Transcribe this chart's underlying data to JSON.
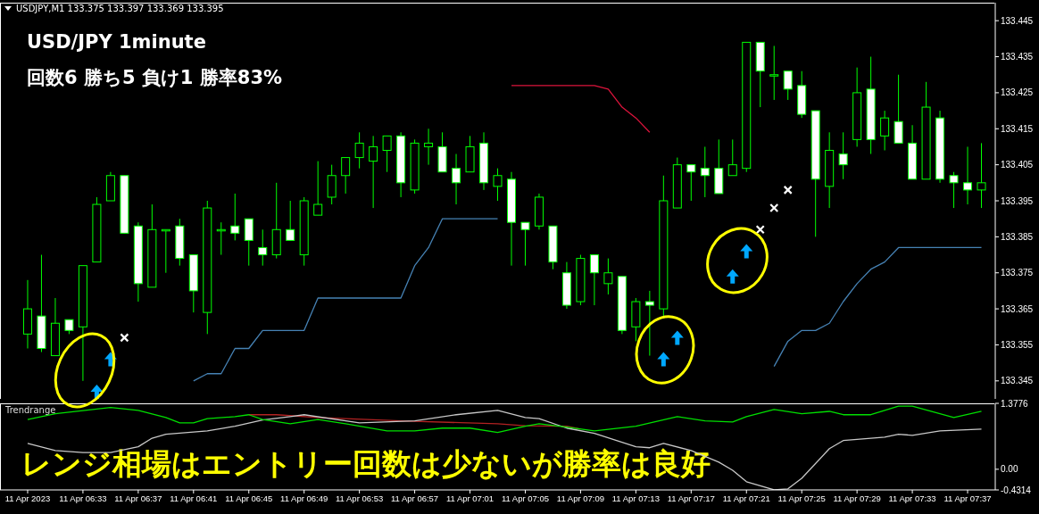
{
  "chart_data": [
    {
      "type": "candlestick",
      "color": "#00ff00",
      "annotations": [
        "USDJPY,M1  133.375 133.397 133.369 133.395",
        "USD/JPY 1minute",
        "回数6 勝ち5 負け1 勝率83%"
      ],
      "x": [
        "2023-04-11T06:29",
        "2023-04-11T06:30",
        "2023-04-11T06:31",
        "2023-04-11T06:32",
        "2023-04-11T06:33",
        "2023-04-11T06:34",
        "2023-04-11T06:35",
        "2023-04-11T06:36",
        "2023-04-11T06:37",
        "2023-04-11T06:38",
        "2023-04-11T06:39",
        "2023-04-11T06:40",
        "2023-04-11T06:41",
        "2023-04-11T06:42",
        "2023-04-11T06:43",
        "2023-04-11T06:44",
        "2023-04-11T06:45",
        "2023-04-11T06:46",
        "2023-04-11T06:47",
        "2023-04-11T06:48",
        "2023-04-11T06:49",
        "2023-04-11T06:50",
        "2023-04-11T06:51",
        "2023-04-11T06:52",
        "2023-04-11T06:53",
        "2023-04-11T06:54",
        "2023-04-11T06:55",
        "2023-04-11T06:56",
        "2023-04-11T06:57",
        "2023-04-11T06:58",
        "2023-04-11T06:59",
        "2023-04-11T07:00",
        "2023-04-11T07:01",
        "2023-04-11T07:02",
        "2023-04-11T07:03",
        "2023-04-11T07:04",
        "2023-04-11T07:05",
        "2023-04-11T07:06",
        "2023-04-11T07:07",
        "2023-04-11T07:08",
        "2023-04-11T07:09",
        "2023-04-11T07:10",
        "2023-04-11T07:11",
        "2023-04-11T07:12",
        "2023-04-11T07:13",
        "2023-04-11T07:14",
        "2023-04-11T07:15",
        "2023-04-11T07:16",
        "2023-04-11T07:17",
        "2023-04-11T07:18",
        "2023-04-11T07:19",
        "2023-04-11T07:20",
        "2023-04-11T07:21",
        "2023-04-11T07:22",
        "2023-04-11T07:23",
        "2023-04-11T07:24",
        "2023-04-11T07:25",
        "2023-04-11T07:26",
        "2023-04-11T07:27",
        "2023-04-11T07:28",
        "2023-04-11T07:29",
        "2023-04-11T07:30",
        "2023-04-11T07:31",
        "2023-04-11T07:32",
        "2023-04-11T07:33",
        "2023-04-11T07:34",
        "2023-04-11T07:35",
        "2023-04-11T07:36",
        "2023-04-11T07:37",
        "2023-04-11T07:38"
      ],
      "ohlc": [
        [
          133.358,
          133.373,
          133.354,
          133.365
        ],
        [
          133.363,
          133.38,
          133.353,
          133.354
        ],
        [
          133.352,
          133.368,
          133.352,
          133.361
        ],
        [
          133.362,
          133.362,
          133.358,
          133.359
        ],
        [
          133.36,
          133.377,
          133.345,
          133.377
        ],
        [
          133.378,
          133.396,
          133.378,
          133.394
        ],
        [
          133.395,
          133.403,
          133.395,
          133.402
        ],
        [
          133.402,
          133.402,
          133.386,
          133.386
        ],
        [
          133.388,
          133.389,
          133.367,
          133.372
        ],
        [
          133.371,
          133.394,
          133.371,
          133.387
        ],
        [
          133.387,
          133.387,
          133.375,
          133.387
        ],
        [
          133.388,
          133.39,
          133.377,
          133.379
        ],
        [
          133.38,
          133.38,
          133.364,
          133.37
        ],
        [
          133.364,
          133.395,
          133.358,
          133.393
        ],
        [
          133.387,
          133.389,
          133.38,
          133.387
        ],
        [
          133.388,
          133.397,
          133.384,
          133.386
        ],
        [
          133.39,
          133.39,
          133.377,
          133.384
        ],
        [
          133.382,
          133.387,
          133.377,
          133.38
        ],
        [
          133.38,
          133.4,
          133.379,
          133.387
        ],
        [
          133.387,
          133.395,
          133.384,
          133.384
        ],
        [
          133.38,
          133.396,
          133.377,
          133.395
        ],
        [
          133.391,
          133.406,
          133.391,
          133.394
        ],
        [
          133.396,
          133.405,
          133.394,
          133.402
        ],
        [
          133.402,
          133.407,
          133.397,
          133.407
        ],
        [
          133.407,
          133.414,
          133.404,
          133.411
        ],
        [
          133.406,
          133.413,
          133.393,
          133.41
        ],
        [
          133.409,
          133.413,
          133.403,
          133.413
        ],
        [
          133.413,
          133.414,
          133.396,
          133.4
        ],
        [
          133.398,
          133.412,
          133.397,
          133.411
        ],
        [
          133.41,
          133.415,
          133.405,
          133.411
        ],
        [
          133.41,
          133.414,
          133.403,
          133.403
        ],
        [
          133.404,
          133.408,
          133.394,
          133.4
        ],
        [
          133.403,
          133.413,
          133.403,
          133.41
        ],
        [
          133.411,
          133.414,
          133.398,
          133.4
        ],
        [
          133.399,
          133.404,
          133.395,
          133.402
        ],
        [
          133.401,
          133.403,
          133.377,
          133.389
        ],
        [
          133.389,
          133.389,
          133.377,
          133.387
        ],
        [
          133.388,
          133.397,
          133.387,
          133.396
        ],
        [
          133.388,
          133.388,
          133.376,
          133.378
        ],
        [
          133.375,
          133.378,
          133.365,
          133.366
        ],
        [
          133.367,
          133.38,
          133.366,
          133.379
        ],
        [
          133.38,
          133.38,
          133.366,
          133.375
        ],
        [
          133.372,
          133.379,
          133.369,
          133.375
        ],
        [
          133.374,
          133.374,
          133.358,
          133.359
        ],
        [
          133.36,
          133.368,
          133.356,
          133.367
        ],
        [
          133.367,
          133.37,
          133.352,
          133.366
        ],
        [
          133.365,
          133.402,
          133.363,
          133.395
        ],
        [
          133.393,
          133.407,
          133.393,
          133.405
        ],
        [
          133.405,
          133.405,
          133.395,
          133.403
        ],
        [
          133.404,
          133.41,
          133.396,
          133.402
        ],
        [
          133.404,
          133.412,
          133.397,
          133.397
        ],
        [
          133.402,
          133.412,
          133.402,
          133.405
        ],
        [
          133.404,
          133.439,
          133.403,
          133.439
        ],
        [
          133.439,
          133.439,
          133.421,
          133.431
        ],
        [
          133.43,
          133.438,
          133.423,
          133.43
        ],
        [
          133.431,
          133.431,
          133.423,
          133.426
        ],
        [
          133.427,
          133.431,
          133.418,
          133.419
        ],
        [
          133.42,
          133.42,
          133.385,
          133.401
        ],
        [
          133.399,
          133.414,
          133.393,
          133.409
        ],
        [
          133.408,
          133.414,
          133.401,
          133.405
        ],
        [
          133.412,
          133.432,
          133.41,
          133.425
        ],
        [
          133.426,
          133.435,
          133.408,
          133.412
        ],
        [
          133.413,
          133.42,
          133.409,
          133.418
        ],
        [
          133.417,
          133.43,
          133.411,
          133.411
        ],
        [
          133.411,
          133.416,
          133.401,
          133.401
        ],
        [
          133.401,
          133.428,
          133.401,
          133.421
        ],
        [
          133.418,
          133.42,
          133.4,
          133.401
        ],
        [
          133.402,
          133.403,
          133.393,
          133.4
        ],
        [
          133.4,
          133.41,
          133.394,
          133.398
        ],
        [
          133.398,
          133.411,
          133.393,
          133.4
        ]
      ],
      "series": [
        {
          "type": "line",
          "color": "#4682b4",
          "x": [
            "2023-04-11T06:41",
            "2023-04-11T06:42",
            "2023-04-11T06:43",
            "2023-04-11T06:44",
            "2023-04-11T06:45",
            "2023-04-11T06:46",
            "2023-04-11T06:49",
            "2023-04-11T06:50",
            "2023-04-11T06:56",
            "2023-04-11T06:57",
            "2023-04-11T06:58",
            "2023-04-11T06:59",
            "2023-04-11T07:03",
            "2023-04-11T07:13",
            "2023-04-11T07:23",
            "2023-04-11T07:24",
            "2023-04-11T07:25",
            "2023-04-11T07:26",
            "2023-04-11T07:27",
            "2023-04-11T07:28",
            "2023-04-11T07:29",
            "2023-04-11T07:30",
            "2023-04-11T07:31",
            "2023-04-11T07:32",
            "2023-04-11T07:38"
          ],
          "values": [
            133.345,
            133.347,
            133.347,
            133.354,
            133.354,
            133.359,
            133.359,
            133.368,
            133.368,
            133.377,
            133.382,
            133.39,
            133.39,
            null,
            133.349,
            133.356,
            133.359,
            133.359,
            133.361,
            133.367,
            133.372,
            133.376,
            133.378,
            133.382,
            133.382
          ]
        },
        {
          "type": "line",
          "color": "#dc143c",
          "x": [
            "2023-04-11T07:04",
            "2023-04-11T07:10",
            "2023-04-11T07:11",
            "2023-04-11T07:12",
            "2023-04-11T07:13",
            "2023-04-11T07:14"
          ],
          "values": [
            133.427,
            133.427,
            133.426,
            133.421,
            133.418,
            133.414
          ]
        },
        {
          "type": "scatter",
          "color": "#00a8ff",
          "marker": "triangle",
          "x": [
            "2023-04-11T06:34",
            "2023-04-11T06:35",
            "2023-04-11T07:15",
            "2023-04-11T07:16",
            "2023-04-11T07:20",
            "2023-04-11T07:21"
          ],
          "values": [
            133.342,
            133.351,
            133.351,
            133.357,
            133.374,
            133.381
          ]
        },
        {
          "type": "scatter",
          "color": "#ffffff",
          "marker": "cross",
          "x": [
            "2023-04-11T06:36",
            "2023-04-11T07:22",
            "2023-04-11T07:23",
            "2023-04-11T07:24"
          ],
          "values": [
            133.357,
            133.387,
            133.393,
            133.398
          ]
        }
      ],
      "xlim": [
        "2023-04-11T06:27",
        "2023-04-11T07:39"
      ],
      "ylim": [
        133.34,
        133.45
      ],
      "yticks": [
        133.445,
        133.435,
        133.425,
        133.415,
        133.405,
        133.395,
        133.385,
        133.375,
        133.365,
        133.355,
        133.345
      ],
      "tick_labels": "y"
    },
    {
      "type": "line",
      "title": "Trendrange",
      "annotations": [
        "レンジ相場はエントリー回数は少ないが勝率は良好"
      ],
      "xlim": [
        "2023-04-11T06:27",
        "2023-04-11T07:39"
      ],
      "xticks": [
        {
          "value": "2023-04-11T06:29",
          "label": "11 Apr 2023"
        },
        {
          "value": "2023-04-11T06:33",
          "label": "11 Apr 06:33"
        },
        {
          "value": "2023-04-11T06:37",
          "label": "11 Apr 06:37"
        },
        {
          "value": "2023-04-11T06:41",
          "label": "11 Apr 06:41"
        },
        {
          "value": "2023-04-11T06:45",
          "label": "11 Apr 06:45"
        },
        {
          "value": "2023-04-11T06:49",
          "label": "11 Apr 06:49"
        },
        {
          "value": "2023-04-11T06:53",
          "label": "11 Apr 06:53"
        },
        {
          "value": "2023-04-11T06:57",
          "label": "11 Apr 06:57"
        },
        {
          "value": "2023-04-11T07:01",
          "label": "11 Apr 07:01"
        },
        {
          "value": "2023-04-11T07:05",
          "label": "11 Apr 07:05"
        },
        {
          "value": "2023-04-11T07:09",
          "label": "11 Apr 07:09"
        },
        {
          "value": "2023-04-11T07:13",
          "label": "11 Apr 07:13"
        },
        {
          "value": "2023-04-11T07:17",
          "label": "11 Apr 07:17"
        },
        {
          "value": "2023-04-11T07:21",
          "label": "11 Apr 07:21"
        },
        {
          "value": "2023-04-11T07:25",
          "label": "11 Apr 07:25"
        },
        {
          "value": "2023-04-11T07:29",
          "label": "11 Apr 07:29"
        },
        {
          "value": "2023-04-11T07:33",
          "label": "11 Apr 07:33"
        },
        {
          "value": "2023-04-11T07:37",
          "label": "11 Apr 07:37"
        }
      ],
      "ylim": [
        -0.4314,
        1.3776
      ],
      "yticks": [
        1.3776,
        {
          "value": 0,
          "label": "0.00"
        },
        -0.4314
      ],
      "series": [
        {
          "color": "#00e000",
          "x": [
            "2023-04-11T06:29",
            "2023-04-11T06:31",
            "2023-04-11T06:34",
            "2023-04-11T06:35",
            "2023-04-11T06:37",
            "2023-04-11T06:39",
            "2023-04-11T06:40",
            "2023-04-11T06:41",
            "2023-04-11T06:42",
            "2023-04-11T06:44",
            "2023-04-11T06:45",
            "2023-04-11T06:46",
            "2023-04-11T06:48",
            "2023-04-11T06:50",
            "2023-04-11T06:52",
            "2023-04-11T06:55",
            "2023-04-11T06:57",
            "2023-04-11T06:59",
            "2023-04-11T07:01",
            "2023-04-11T07:03",
            "2023-04-11T07:05",
            "2023-04-11T07:06",
            "2023-04-11T07:08",
            "2023-04-11T07:10",
            "2023-04-11T07:13",
            "2023-04-11T07:16",
            "2023-04-11T07:18",
            "2023-04-11T07:20",
            "2023-04-11T07:21",
            "2023-04-11T07:23",
            "2023-04-11T07:25",
            "2023-04-11T07:27",
            "2023-04-11T07:28",
            "2023-04-11T07:30",
            "2023-04-11T07:32",
            "2023-04-11T07:33",
            "2023-04-11T07:36",
            "2023-04-11T07:38"
          ],
          "values": [
            1.04,
            1.16,
            1.26,
            1.29,
            1.23,
            1.08,
            0.97,
            0.97,
            1.06,
            1.1,
            1.14,
            1.04,
            0.95,
            1.04,
            0.95,
            0.8,
            0.8,
            0.86,
            0.86,
            0.77,
            0.9,
            0.95,
            0.88,
            0.8,
            0.9,
            1.1,
            1.01,
            0.99,
            1.1,
            1.25,
            1.16,
            1.21,
            1.14,
            1.14,
            1.32,
            1.32,
            1.08,
            1.21
          ]
        },
        {
          "color": "#c8c8c8",
          "x": [
            "2023-04-11T06:29",
            "2023-04-11T06:31",
            "2023-04-11T06:33",
            "2023-04-11T06:35",
            "2023-04-11T06:37",
            "2023-04-11T06:38",
            "2023-04-11T06:39",
            "2023-04-11T06:42",
            "2023-04-11T06:44",
            "2023-04-11T06:46",
            "2023-04-11T06:48",
            "2023-04-11T06:49",
            "2023-04-11T06:53",
            "2023-04-11T06:57",
            "2023-04-11T07:00",
            "2023-04-11T07:03",
            "2023-04-11T07:05",
            "2023-04-11T07:06",
            "2023-04-11T07:08",
            "2023-04-11T07:10",
            "2023-04-11T07:13",
            "2023-04-11T07:14",
            "2023-04-11T07:15",
            "2023-04-11T07:17",
            "2023-04-11T07:19",
            "2023-04-11T07:20",
            "2023-04-11T07:21",
            "2023-04-11T07:23",
            "2023-04-11T07:24",
            "2023-04-11T07:25",
            "2023-04-11T07:27",
            "2023-04-11T07:28",
            "2023-04-11T07:31",
            "2023-04-11T07:32",
            "2023-04-11T07:33",
            "2023-04-11T07:35",
            "2023-04-11T07:38"
          ],
          "values": [
            0.54,
            0.39,
            0.35,
            0.35,
            0.47,
            0.65,
            0.73,
            0.8,
            0.9,
            1.03,
            1.1,
            1.14,
            0.97,
            1.01,
            1.14,
            1.23,
            1.08,
            1.06,
            0.86,
            0.75,
            0.47,
            0.45,
            0.54,
            0.39,
            0.15,
            -0.02,
            -0.26,
            -0.43,
            -0.41,
            -0.19,
            0.43,
            0.6,
            0.67,
            0.73,
            0.71,
            0.8,
            0.84
          ]
        },
        {
          "color": "#b22222",
          "x": [
            "2023-04-11T06:45",
            "2023-04-11T06:47",
            "2023-04-11T06:50",
            "2023-04-11T06:56",
            "2023-04-11T07:03",
            "2023-04-11T07:05",
            "2023-04-11T07:08",
            "2023-04-11T07:09"
          ],
          "values": [
            1.14,
            1.14,
            1.08,
            1.01,
            0.95,
            0.91,
            0.9,
            0.84
          ]
        }
      ]
    }
  ]
}
